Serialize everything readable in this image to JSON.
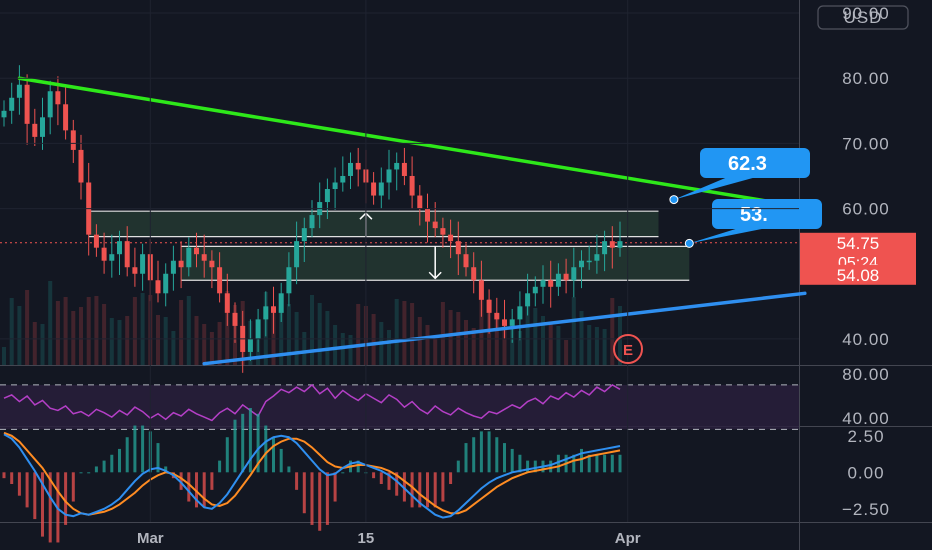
{
  "currency": "USD",
  "colors": {
    "background": "#131722",
    "up": "#26a69a",
    "down": "#ef5350",
    "resistance_line": "#2ee81a",
    "support_line": "#2f8ff0",
    "callout": "#2196f3",
    "rsi": "#b43fc6",
    "macd": "#2f8ff0",
    "signal": "#ff8c22",
    "zone": "#2e4a3a"
  },
  "earnings_marker": "E",
  "chart_data": [
    {
      "type": "candlestick",
      "title": "",
      "x_tick_labels": [
        "Mar",
        "15",
        "Apr"
      ],
      "ylim": [
        36,
        92
      ],
      "y_ticks": [
        "90.00",
        "80.00",
        "70.00",
        "60.00",
        "40.00"
      ],
      "price_labels": [
        {
          "value": 54.75,
          "text": "54.75",
          "sub": "05:24"
        },
        {
          "value": 54.08,
          "text": "54.08"
        }
      ],
      "callouts": [
        {
          "text": "62.3",
          "value": 62.3
        },
        {
          "text": "53.",
          "value": 53.0
        }
      ],
      "trendlines": [
        {
          "name": "resistance",
          "from": {
            "bar": 2,
            "value": 80.0
          },
          "to": {
            "bar": 104,
            "value": 60.2
          }
        },
        {
          "name": "support",
          "from": {
            "bar": 26,
            "value": 36.2
          },
          "to": {
            "bar": 104,
            "value": 47.0
          }
        }
      ],
      "zones": [
        {
          "from_bar": 11,
          "to_bar": 85,
          "top": 59.6,
          "bottom": 55.7
        },
        {
          "from_bar": 23,
          "to_bar": 89,
          "top": 54.2,
          "bottom": 49.0
        }
      ],
      "close": [
        75,
        77,
        79,
        73,
        71,
        74,
        78,
        76,
        72,
        69,
        64,
        56,
        54,
        52,
        53,
        55,
        51,
        50,
        53,
        49,
        47,
        50,
        52,
        51,
        54,
        53,
        52,
        51,
        47,
        44,
        42,
        38,
        40,
        43,
        45,
        44,
        47,
        51,
        55,
        57,
        59,
        61,
        63,
        64,
        65,
        67,
        66,
        64,
        62,
        64,
        66,
        67,
        65,
        62,
        60,
        58,
        57,
        56,
        55,
        53,
        51,
        49,
        46,
        44,
        43,
        42,
        43,
        45,
        47,
        48,
        49,
        48,
        50,
        49,
        51,
        52,
        52,
        53,
        55,
        54,
        55
      ]
    },
    {
      "type": "line",
      "name": "RSI",
      "ylim": [
        33,
        87
      ],
      "y_ticks": [
        "80.00",
        "40.00"
      ],
      "levels": [
        70,
        30
      ],
      "values": [
        58,
        61,
        55,
        60,
        52,
        56,
        49,
        47,
        51,
        44,
        46,
        42,
        48,
        45,
        41,
        47,
        43,
        50,
        46,
        40,
        44,
        39,
        45,
        42,
        48,
        44,
        41,
        38,
        45,
        49,
        44,
        52,
        47,
        42,
        55,
        60,
        66,
        63,
        68,
        64,
        70,
        62,
        67,
        58,
        65,
        60,
        56,
        62,
        58,
        54,
        61,
        57,
        50,
        55,
        48,
        44,
        51,
        46,
        43,
        49,
        45,
        42,
        40,
        46,
        44,
        48,
        52,
        49,
        55,
        58,
        53,
        60,
        57,
        63,
        59,
        65,
        61,
        68,
        64,
        70,
        66
      ]
    },
    {
      "type": "line",
      "name": "MACD",
      "ylim": [
        -3.4,
        3.1
      ],
      "y_ticks": [
        "2.50",
        "0.00",
        "−2.50"
      ],
      "macd": [
        2.6,
        2.3,
        1.7,
        0.9,
        0.1,
        -0.8,
        -1.7,
        -2.5,
        -2.9,
        -3.0,
        -2.8,
        -2.9,
        -2.7,
        -2.5,
        -2.2,
        -1.8,
        -1.2,
        -0.6,
        -0.1,
        0.2,
        0.3,
        0.1,
        -0.2,
        -0.7,
        -1.3,
        -1.9,
        -2.4,
        -2.5,
        -2.1,
        -1.5,
        -0.7,
        0.1,
        0.9,
        1.6,
        2.1,
        2.4,
        2.5,
        2.4,
        2.0,
        1.4,
        0.8,
        0.2,
        -0.2,
        -0.1,
        0.3,
        0.6,
        0.7,
        0.5,
        0.3,
        0.1,
        -0.2,
        -0.6,
        -1.1,
        -1.6,
        -2.1,
        -2.5,
        -2.9,
        -3.1,
        -3.0,
        -2.6,
        -2.1,
        -1.6,
        -1.1,
        -0.7,
        -0.4,
        -0.2,
        0.0,
        0.1,
        0.2,
        0.3,
        0.4,
        0.5,
        0.7,
        0.9,
        1.1,
        1.3,
        1.4,
        1.5,
        1.6,
        1.7,
        1.8
      ],
      "signal": [
        2.7,
        2.5,
        2.1,
        1.5,
        0.9,
        0.3,
        -0.5,
        -1.3,
        -2.0,
        -2.5,
        -2.8,
        -2.9,
        -2.8,
        -2.7,
        -2.5,
        -2.2,
        -1.8,
        -1.4,
        -0.9,
        -0.5,
        -0.2,
        0.0,
        -0.1,
        -0.4,
        -0.8,
        -1.3,
        -1.8,
        -2.2,
        -2.3,
        -2.1,
        -1.6,
        -0.9,
        -0.2,
        0.6,
        1.3,
        1.8,
        2.1,
        2.3,
        2.3,
        2.1,
        1.7,
        1.2,
        0.7,
        0.4,
        0.3,
        0.4,
        0.5,
        0.5,
        0.4,
        0.3,
        0.1,
        -0.2,
        -0.6,
        -1.0,
        -1.5,
        -1.9,
        -2.3,
        -2.6,
        -2.8,
        -2.8,
        -2.6,
        -2.2,
        -1.8,
        -1.4,
        -1.0,
        -0.7,
        -0.4,
        -0.2,
        0.0,
        0.1,
        0.2,
        0.3,
        0.4,
        0.6,
        0.8,
        0.9,
        1.1,
        1.2,
        1.3,
        1.4,
        1.5
      ]
    }
  ]
}
